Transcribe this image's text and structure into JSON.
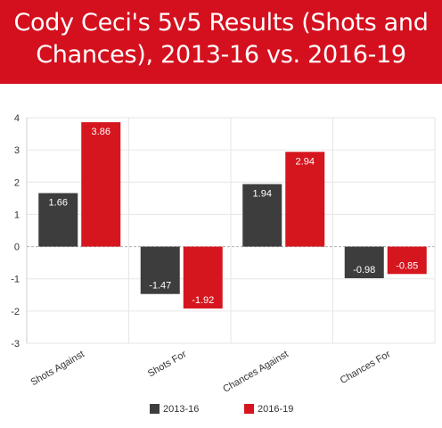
{
  "title_lines": [
    "Cody Ceci's 5v5 Results (Shots and",
    "Chances), 2013-16 vs. 2016-19"
  ],
  "colors": {
    "title_background": "#d4101e",
    "series_2013_16": "#3d3d3d",
    "series_2016_19": "#d6161f",
    "gridline": "#e6e6e6",
    "zero_line": "#b0b0b0"
  },
  "chart_data": {
    "type": "bar",
    "title": "Cody Ceci's 5v5 Results (Shots and Chances), 2013-16 vs. 2016-19",
    "categories": [
      "Shots Against",
      "Shots For",
      "Chances Against",
      "Chances For"
    ],
    "series": [
      {
        "name": "2013-16",
        "values": [
          1.66,
          -1.47,
          1.94,
          -0.98
        ],
        "labels": [
          "1.66",
          "-1.47",
          "1.94",
          "-0.98"
        ]
      },
      {
        "name": "2016-19",
        "values": [
          3.86,
          -1.92,
          2.94,
          -0.85
        ],
        "labels": [
          "3.86",
          "-1.92",
          "2.94",
          "-0.85"
        ]
      }
    ],
    "ylim": [
      -3,
      4
    ],
    "yticks": [
      "4",
      "3",
      "2",
      "1",
      "0",
      "-1",
      "-2",
      "-3"
    ],
    "xlabel": "",
    "ylabel": "",
    "grid": true,
    "legend_position": "bottom"
  }
}
